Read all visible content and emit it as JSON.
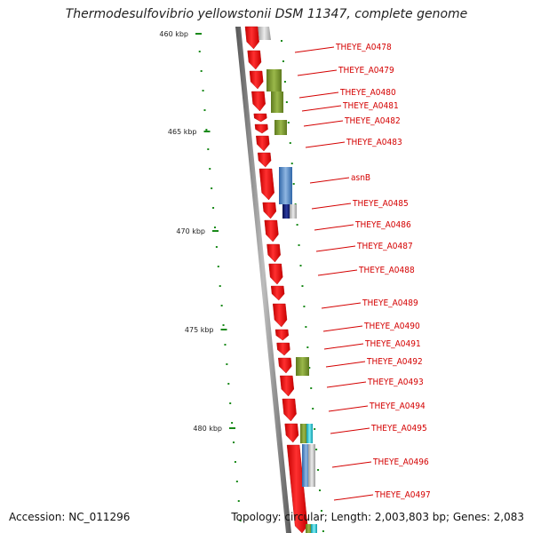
{
  "title": "Thermodesulfovibrio yellowstonii DSM 11347, complete genome",
  "accession": "Accession: NC_011296",
  "topology": "Topology: circular; Length: 2,003,803 bp; Genes: 2,083",
  "colors": {
    "cds": "#ee0000",
    "backbone": "#808080",
    "label": "#d40000",
    "tick": "#1a8a1a",
    "olive": "#7a9a2a",
    "blue": "#4a84c4",
    "navy": "#101a6e",
    "cyan": "#20c8d8",
    "gray": "#c8c8c8"
  },
  "scale_labels": [
    "460 kbp",
    "465 kbp",
    "470 kbp",
    "475 kbp",
    "480 kbp"
  ],
  "genes": [
    "THEYE_A0478",
    "THEYE_A0479",
    "THEYE_A0480",
    "THEYE_A0481",
    "THEYE_A0482",
    "THEYE_A0483",
    "asnB",
    "THEYE_A0485",
    "THEYE_A0486",
    "THEYE_A0487",
    "THEYE_A0488",
    "THEYE_A0489",
    "THEYE_A0490",
    "THEYE_A0491",
    "THEYE_A0492",
    "THEYE_A0493",
    "THEYE_A0494",
    "THEYE_A0495",
    "THEYE_A0496",
    "THEYE_A0497"
  ]
}
